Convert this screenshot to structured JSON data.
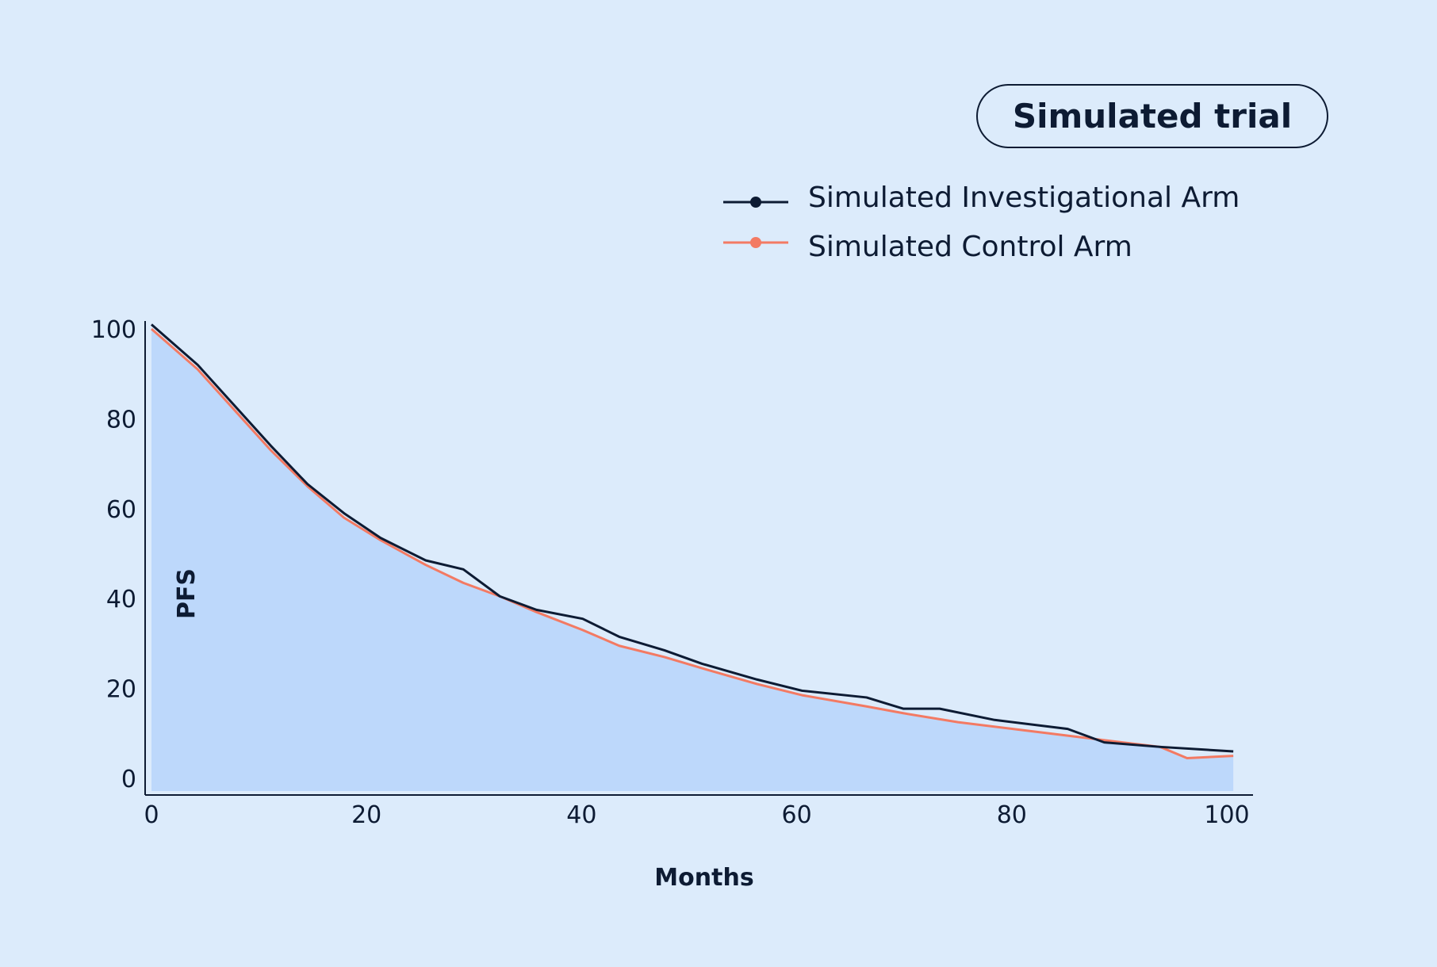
{
  "chart_data": {
    "type": "line",
    "title": "Simulated trial",
    "xlabel": "Months",
    "ylabel": "PFS",
    "xlim": [
      0,
      100
    ],
    "ylim": [
      0,
      100
    ],
    "x_ticks": [
      "0",
      "20",
      "40",
      "60",
      "80",
      "100"
    ],
    "y_ticks": [
      "0",
      "20",
      "40",
      "60",
      "80",
      "100"
    ],
    "legend_position": "top-right",
    "series": [
      {
        "name": "Simulated Investigational Arm",
        "color": "#0d1b33",
        "x": [
          0,
          4.3,
          7.7,
          11.1,
          14.5,
          17.9,
          21.3,
          25.5,
          29,
          32.4,
          35.8,
          40.1,
          43.5,
          47.7,
          51.2,
          56.3,
          60.5,
          66.5,
          69.9,
          73.3,
          78.4,
          85.2,
          88.6,
          93.8,
          100.6
        ],
        "values": [
          101,
          92,
          83,
          74,
          65.5,
          59,
          53.5,
          48.5,
          46.5,
          40.5,
          37.5,
          35.5,
          31.5,
          28.5,
          25.5,
          22,
          19.5,
          18,
          15.5,
          15.5,
          13,
          11,
          8,
          7,
          6
        ]
      },
      {
        "name": "Simulated Control Arm",
        "color": "#f37a63",
        "x": [
          0,
          4.3,
          7.7,
          11.1,
          14.5,
          17.9,
          21.3,
          25.5,
          29,
          32.4,
          35.8,
          40.1,
          43.5,
          47.7,
          51.2,
          56.3,
          60.5,
          66.5,
          69.9,
          75,
          80.1,
          85.2,
          88.6,
          93.8,
          96.3,
          100.6
        ],
        "values": [
          100,
          91,
          82,
          73,
          65,
          58,
          53,
          47.5,
          43.5,
          40.5,
          37,
          33,
          29.5,
          27,
          24.5,
          21,
          18.5,
          16,
          14.5,
          12.5,
          11,
          9.5,
          8.5,
          7,
          4.5,
          5
        ]
      }
    ]
  }
}
